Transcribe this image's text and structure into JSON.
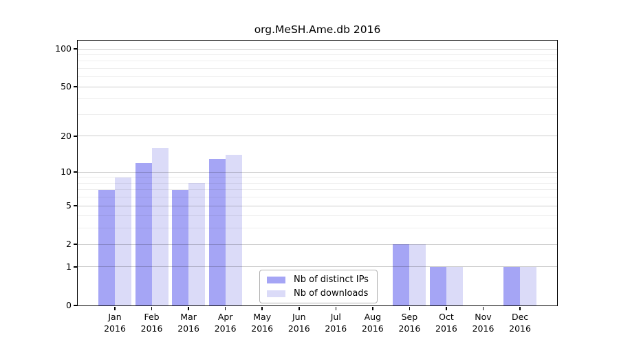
{
  "title": "org.MeSH.Ame.db 2016",
  "chart_data": {
    "type": "bar",
    "title": "org.MeSH.Ame.db 2016",
    "categories": [
      "Jan",
      "Feb",
      "Mar",
      "Apr",
      "May",
      "Jun",
      "Jul",
      "Aug",
      "Sep",
      "Oct",
      "Nov",
      "Dec"
    ],
    "category_year": "2016",
    "series": [
      {
        "name": "Nb of distinct IPs",
        "color": "#a5a5f5",
        "values": [
          7,
          12,
          7,
          13,
          0,
          0,
          0,
          0,
          2,
          1,
          0,
          1
        ]
      },
      {
        "name": "Nb of downloads",
        "color": "#dbdbf8",
        "values": [
          9,
          16,
          8,
          14,
          0,
          0,
          0,
          0,
          2,
          1,
          0,
          1
        ]
      }
    ],
    "yscale": "log1p",
    "ylim": [
      0,
      116
    ],
    "yticks": [
      0,
      1,
      2,
      5,
      10,
      20,
      50,
      100
    ],
    "minor_gridlines": [
      3,
      4,
      6,
      7,
      8,
      9,
      30,
      40,
      60,
      70,
      80,
      90
    ],
    "grid": "on",
    "legend_position": "bottom-center-inside",
    "xlabel": "",
    "ylabel": ""
  },
  "legend": {
    "items": [
      {
        "label": "Nb of distinct IPs",
        "swatch": "#a5a5f5"
      },
      {
        "label": "Nb of downloads",
        "swatch": "#dbdbf8"
      }
    ]
  }
}
